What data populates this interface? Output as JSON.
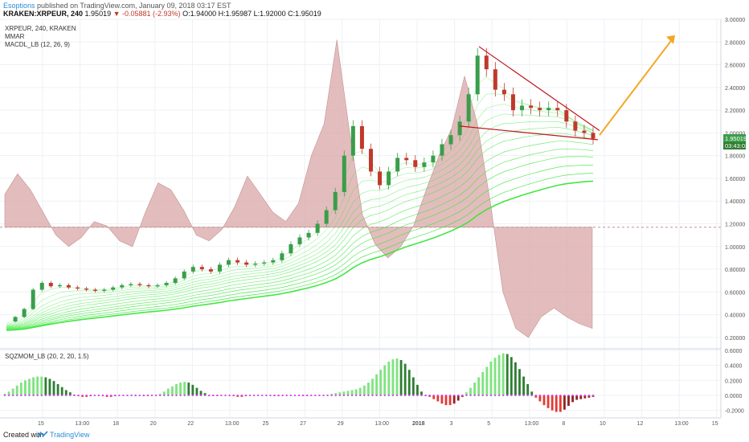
{
  "header": {
    "author": "Esoptions",
    "published": "published on TradingView.com, January 09, 2018 03:17 EST",
    "symbol": "KRAKEN:XRPEUR, 240",
    "price": "1.95019",
    "change": "▼ -0.05881 (-2.93%)",
    "ohlc": "O:1.94000 H:1.95987 L:1.92000 C:1.95019"
  },
  "legend": {
    "line1": "XRPEUR, 240, KRAKEN",
    "line2": "MMAR",
    "line3": "MACDL_LB (12, 26, 9)",
    "sqz": "SQZMOM_LB (20, 2, 20, 1.5)"
  },
  "price_labels": {
    "last": "1.95019",
    "countdown": "03:43:02"
  },
  "footer": {
    "created": "Created with",
    "brand": "TradingView"
  },
  "colors": {
    "bull": "#3a9d4a",
    "bear": "#c0392b",
    "ribbon": "#39e639",
    "macd_fill": "#d9a7a7",
    "trend": "#c0151b",
    "arrow": "#f5a623",
    "sqz_lime": "#7fe37f",
    "sqz_green": "#2e7d32",
    "sqz_red": "#e53935",
    "sqz_maroon": "#8e2424",
    "zero_dot": "#e040fb"
  },
  "chart_data": {
    "type": "candlestick",
    "ylim": [
      0.1,
      3.0
    ],
    "y_ticks": [
      "3.00000",
      "2.80000",
      "2.60000",
      "2.40000",
      "2.20000",
      "2.00000",
      "1.80000",
      "1.60000",
      "1.40000",
      "1.20000",
      "1.00000",
      "0.80000",
      "0.60000",
      "0.40000",
      "0.20000"
    ],
    "x_ticks": [
      "15",
      "13:00",
      "18",
      "20",
      "22",
      "13:00",
      "25",
      "27",
      "29",
      "13:00",
      "2018",
      "3",
      "5",
      "13:00",
      "8",
      "10",
      "12",
      "13:00",
      "15"
    ],
    "price": [
      0.34,
      0.38,
      0.45,
      0.62,
      0.68,
      0.65,
      0.66,
      0.64,
      0.63,
      0.62,
      0.61,
      0.62,
      0.64,
      0.66,
      0.67,
      0.66,
      0.65,
      0.66,
      0.68,
      0.72,
      0.78,
      0.82,
      0.8,
      0.78,
      0.84,
      0.88,
      0.86,
      0.84,
      0.85,
      0.86,
      0.88,
      0.94,
      1.02,
      1.08,
      1.12,
      1.2,
      1.32,
      1.48,
      1.8,
      2.06,
      1.86,
      1.66,
      1.54,
      1.66,
      1.78,
      1.76,
      1.7,
      1.74,
      1.8,
      1.9,
      1.98,
      2.1,
      2.34,
      2.68,
      2.56,
      2.38,
      2.34,
      2.2,
      2.24,
      2.22,
      2.2,
      2.22,
      2.2,
      2.1,
      2.02,
      2.0,
      1.95
    ],
    "macd_band": [
      1.46,
      1.64,
      1.5,
      1.3,
      1.1,
      1.0,
      1.08,
      1.22,
      1.18,
      1.05,
      1.0,
      1.3,
      1.56,
      1.5,
      1.32,
      1.1,
      1.05,
      1.15,
      1.35,
      1.62,
      1.46,
      1.3,
      1.22,
      1.38,
      1.8,
      2.08,
      2.82,
      2.0,
      1.28,
      1.02,
      0.9,
      1.0,
      1.18,
      1.5,
      1.8,
      2.04,
      2.5,
      2.08,
      1.4,
      0.6,
      0.28,
      0.2,
      0.38,
      0.46,
      0.38,
      0.32,
      0.28
    ],
    "macd_zero": 1.17,
    "trendlines": {
      "upper": [
        [
          2.76,
          "Jan 4"
        ],
        [
          2.02,
          "Jan 9"
        ]
      ],
      "lower": [
        [
          2.06,
          "Jan 3"
        ],
        [
          1.94,
          "Jan 9"
        ]
      ]
    },
    "sqzmom": {
      "ylim": [
        -0.3,
        0.62
      ],
      "y_ticks": [
        "0.6000",
        "0.4000",
        "0.2000",
        "0.0000",
        "-0.2000"
      ],
      "values": [
        0.02,
        0.05,
        0.09,
        0.13,
        0.17,
        0.2,
        0.22,
        0.24,
        0.25,
        0.25,
        0.24,
        0.22,
        0.19,
        0.15,
        0.11,
        0.07,
        0.04,
        0.01,
        -0.01,
        -0.02,
        -0.02,
        -0.01,
        0.0,
        0.0,
        -0.01,
        -0.02,
        -0.02,
        -0.01,
        0.0,
        0.0,
        0.0,
        0.01,
        0.0,
        0.0,
        -0.01,
        -0.01,
        0.0,
        0.0,
        0.02,
        0.05,
        0.09,
        0.12,
        0.15,
        0.17,
        0.18,
        0.17,
        0.14,
        0.1,
        0.06,
        0.03,
        0.0,
        -0.01,
        -0.01,
        0.0,
        0.0,
        0.0,
        -0.01,
        -0.02,
        -0.02,
        -0.01,
        0.0,
        0.0,
        0.0,
        0.0,
        0.0,
        0.0,
        -0.01,
        -0.01,
        0.0,
        0.0,
        0.0,
        0.0,
        0.0,
        -0.01,
        -0.01,
        0.0,
        0.0,
        0.0,
        0.0,
        0.01,
        0.02,
        0.03,
        0.04,
        0.05,
        0.06,
        0.07,
        0.08,
        0.1,
        0.13,
        0.17,
        0.22,
        0.28,
        0.34,
        0.4,
        0.45,
        0.48,
        0.49,
        0.47,
        0.42,
        0.34,
        0.24,
        0.14,
        0.05,
        0.0,
        -0.02,
        -0.05,
        -0.08,
        -0.11,
        -0.13,
        -0.13,
        -0.11,
        -0.07,
        -0.02,
        0.04,
        0.1,
        0.17,
        0.24,
        0.31,
        0.38,
        0.45,
        0.5,
        0.54,
        0.56,
        0.55,
        0.51,
        0.44,
        0.35,
        0.25,
        0.15,
        0.05,
        -0.03,
        -0.08,
        -0.13,
        -0.17,
        -0.2,
        -0.22,
        -0.22,
        -0.19,
        -0.14,
        -0.09,
        -0.06,
        -0.05,
        -0.04,
        -0.03,
        -0.02
      ]
    }
  }
}
